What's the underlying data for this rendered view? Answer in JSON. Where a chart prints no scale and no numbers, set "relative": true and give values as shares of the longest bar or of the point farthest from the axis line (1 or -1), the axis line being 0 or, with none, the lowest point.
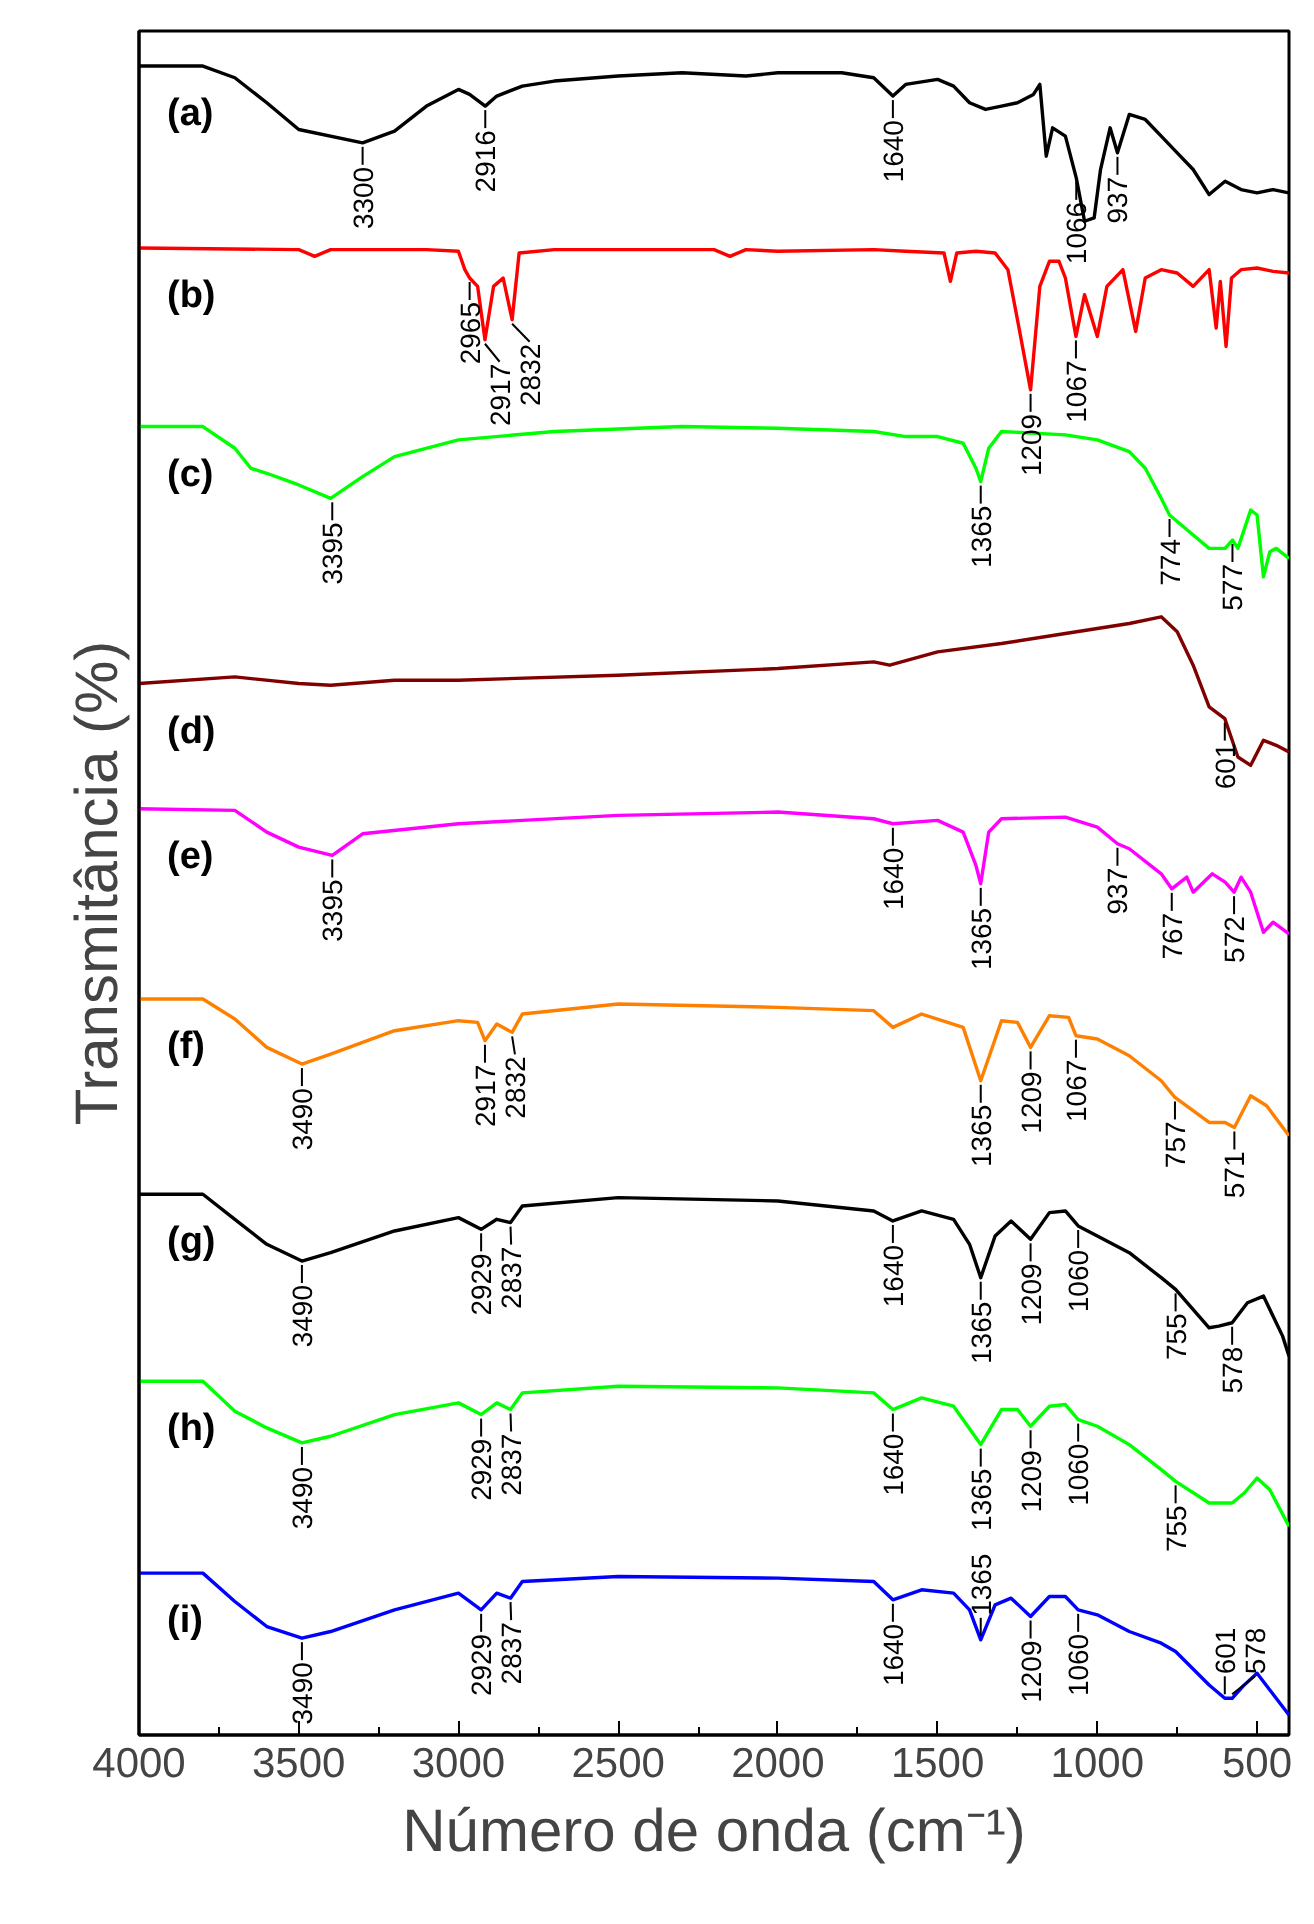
{
  "chart_data": {
    "type": "line",
    "relative": true,
    "xlabel": "Número de onda (cm⁻¹)",
    "ylabel": "Transmitância (%)",
    "xlim": [
      4000,
      400
    ],
    "xticks": [
      4000,
      3500,
      3000,
      2500,
      2000,
      1500,
      1000,
      500
    ],
    "grid": false,
    "series": [
      {
        "name": "(a)",
        "color": "#000000",
        "x": [
          4000,
          3800,
          3700,
          3600,
          3500,
          3300,
          3200,
          3100,
          3000,
          2965,
          2916,
          2880,
          2800,
          2700,
          2500,
          2300,
          2100,
          2000,
          1800,
          1700,
          1640,
          1600,
          1500,
          1450,
          1400,
          1350,
          1300,
          1250,
          1200,
          1180,
          1160,
          1140,
          1100,
          1066,
          1040,
          1010,
          990,
          960,
          937,
          900,
          850,
          800,
          750,
          700,
          650,
          600,
          550,
          500,
          450,
          400
        ],
        "values": [
          1.0,
          1.0,
          0.993,
          0.978,
          0.962,
          0.954,
          0.961,
          0.976,
          0.986,
          0.983,
          0.976,
          0.982,
          0.988,
          0.991,
          0.994,
          0.996,
          0.994,
          0.996,
          0.996,
          0.993,
          0.982,
          0.989,
          0.992,
          0.988,
          0.978,
          0.974,
          0.976,
          0.978,
          0.983,
          0.989,
          0.946,
          0.963,
          0.958,
          0.933,
          0.907,
          0.909,
          0.938,
          0.963,
          0.948,
          0.971,
          0.968,
          0.958,
          0.948,
          0.938,
          0.923,
          0.931,
          0.926,
          0.924,
          0.926,
          0.924
        ]
      },
      {
        "name": "(b)",
        "color": "#ff0000",
        "x": [
          4000,
          3500,
          3450,
          3400,
          3100,
          3000,
          2980,
          2965,
          2940,
          2917,
          2890,
          2860,
          2832,
          2810,
          2700,
          2500,
          2200,
          2150,
          2100,
          2000,
          1700,
          1600,
          1480,
          1460,
          1440,
          1380,
          1320,
          1280,
          1250,
          1209,
          1180,
          1150,
          1120,
          1100,
          1067,
          1040,
          1000,
          970,
          920,
          880,
          850,
          800,
          750,
          700,
          650,
          628,
          615,
          597,
          580,
          550,
          500,
          450,
          400
        ],
        "values": [
          0.891,
          0.89,
          0.886,
          0.89,
          0.89,
          0.889,
          0.878,
          0.873,
          0.868,
          0.836,
          0.868,
          0.873,
          0.848,
          0.888,
          0.89,
          0.89,
          0.89,
          0.886,
          0.89,
          0.889,
          0.89,
          0.889,
          0.888,
          0.871,
          0.888,
          0.889,
          0.888,
          0.878,
          0.848,
          0.806,
          0.868,
          0.883,
          0.883,
          0.873,
          0.838,
          0.863,
          0.838,
          0.868,
          0.878,
          0.841,
          0.873,
          0.878,
          0.876,
          0.868,
          0.878,
          0.843,
          0.871,
          0.832,
          0.873,
          0.878,
          0.879,
          0.877,
          0.876
        ]
      },
      {
        "name": "(c)",
        "color": "#00ff00",
        "x": [
          4000,
          3800,
          3700,
          3650,
          3600,
          3500,
          3400,
          3300,
          3200,
          3000,
          2700,
          2300,
          2000,
          1700,
          1600,
          1500,
          1420,
          1380,
          1365,
          1340,
          1300,
          1100,
          1000,
          900,
          850,
          800,
          774,
          700,
          650,
          600,
          577,
          560,
          520,
          500,
          480,
          460,
          440,
          400
        ],
        "values": [
          0.784,
          0.784,
          0.771,
          0.759,
          0.756,
          0.749,
          0.741,
          0.754,
          0.766,
          0.776,
          0.781,
          0.784,
          0.783,
          0.781,
          0.778,
          0.778,
          0.774,
          0.759,
          0.751,
          0.771,
          0.781,
          0.779,
          0.776,
          0.769,
          0.759,
          0.741,
          0.731,
          0.719,
          0.711,
          0.711,
          0.716,
          0.711,
          0.734,
          0.731,
          0.694,
          0.709,
          0.711,
          0.705
        ]
      },
      {
        "name": "(d)",
        "color": "#800000",
        "x": [
          4000,
          3700,
          3500,
          3400,
          3200,
          3000,
          2500,
          2000,
          1700,
          1650,
          1500,
          1300,
          1100,
          900,
          800,
          750,
          700,
          650,
          601,
          560,
          520,
          480,
          440,
          400
        ],
        "values": [
          0.63,
          0.634,
          0.63,
          0.629,
          0.632,
          0.632,
          0.635,
          0.639,
          0.643,
          0.641,
          0.649,
          0.654,
          0.66,
          0.666,
          0.67,
          0.661,
          0.641,
          0.616,
          0.609,
          0.586,
          0.581,
          0.596,
          0.593,
          0.589
        ]
      },
      {
        "name": "(e)",
        "color": "#ff00ff",
        "x": [
          4000,
          3700,
          3600,
          3500,
          3395,
          3300,
          3000,
          2500,
          2000,
          1700,
          1640,
          1500,
          1420,
          1380,
          1365,
          1340,
          1300,
          1100,
          1000,
          937,
          900,
          800,
          767,
          720,
          700,
          640,
          600,
          572,
          550,
          520,
          480,
          450,
          400
        ],
        "values": [
          0.555,
          0.554,
          0.541,
          0.532,
          0.527,
          0.54,
          0.546,
          0.551,
          0.553,
          0.549,
          0.546,
          0.548,
          0.541,
          0.521,
          0.51,
          0.541,
          0.549,
          0.55,
          0.544,
          0.534,
          0.531,
          0.516,
          0.507,
          0.514,
          0.505,
          0.516,
          0.511,
          0.505,
          0.514,
          0.505,
          0.481,
          0.487,
          0.48
        ]
      },
      {
        "name": "(f)",
        "color": "#ff8000",
        "x": [
          4000,
          3800,
          3700,
          3600,
          3490,
          3400,
          3200,
          3000,
          2940,
          2917,
          2880,
          2832,
          2800,
          2500,
          2000,
          1700,
          1640,
          1550,
          1420,
          1365,
          1300,
          1250,
          1209,
          1150,
          1090,
          1067,
          1000,
          900,
          800,
          757,
          650,
          600,
          571,
          520,
          470,
          400
        ],
        "values": [
          0.441,
          0.441,
          0.429,
          0.412,
          0.402,
          0.408,
          0.422,
          0.428,
          0.427,
          0.416,
          0.426,
          0.421,
          0.432,
          0.438,
          0.436,
          0.434,
          0.424,
          0.432,
          0.424,
          0.392,
          0.428,
          0.427,
          0.412,
          0.431,
          0.43,
          0.419,
          0.417,
          0.407,
          0.392,
          0.382,
          0.367,
          0.367,
          0.364,
          0.383,
          0.377,
          0.359
        ]
      },
      {
        "name": "(g)",
        "color": "#000000",
        "x": [
          4000,
          3800,
          3700,
          3600,
          3490,
          3400,
          3200,
          3000,
          2929,
          2880,
          2837,
          2800,
          2500,
          2000,
          1700,
          1640,
          1550,
          1450,
          1400,
          1365,
          1320,
          1270,
          1209,
          1150,
          1100,
          1060,
          1000,
          900,
          800,
          755,
          650,
          620,
          578,
          530,
          480,
          420,
          400
        ],
        "values": [
          0.324,
          0.324,
          0.309,
          0.294,
          0.284,
          0.289,
          0.302,
          0.31,
          0.303,
          0.309,
          0.307,
          0.317,
          0.322,
          0.32,
          0.314,
          0.308,
          0.314,
          0.309,
          0.294,
          0.274,
          0.299,
          0.308,
          0.297,
          0.313,
          0.314,
          0.305,
          0.299,
          0.289,
          0.274,
          0.267,
          0.244,
          0.245,
          0.247,
          0.259,
          0.263,
          0.239,
          0.227
        ]
      },
      {
        "name": "(h)",
        "color": "#00ff00",
        "x": [
          4000,
          3800,
          3700,
          3600,
          3490,
          3400,
          3200,
          3000,
          2929,
          2880,
          2837,
          2800,
          2500,
          2000,
          1700,
          1640,
          1550,
          1450,
          1365,
          1300,
          1250,
          1209,
          1150,
          1100,
          1060,
          1000,
          900,
          800,
          755,
          650,
          601,
          578,
          540,
          500,
          460,
          400
        ],
        "values": [
          0.212,
          0.212,
          0.194,
          0.184,
          0.175,
          0.179,
          0.192,
          0.199,
          0.192,
          0.199,
          0.195,
          0.205,
          0.209,
          0.208,
          0.205,
          0.195,
          0.202,
          0.197,
          0.174,
          0.195,
          0.195,
          0.185,
          0.197,
          0.198,
          0.189,
          0.185,
          0.174,
          0.159,
          0.152,
          0.139,
          0.139,
          0.139,
          0.145,
          0.154,
          0.147,
          0.125
        ]
      },
      {
        "name": "(i)",
        "color": "#0000ff",
        "x": [
          4000,
          3800,
          3700,
          3600,
          3490,
          3400,
          3200,
          3000,
          2929,
          2880,
          2837,
          2800,
          2500,
          2000,
          1700,
          1640,
          1550,
          1450,
          1400,
          1365,
          1320,
          1270,
          1209,
          1150,
          1100,
          1060,
          1000,
          900,
          800,
          755,
          650,
          601,
          578,
          540,
          500,
          460,
          400
        ],
        "values": [
          0.097,
          0.097,
          0.08,
          0.065,
          0.058,
          0.062,
          0.075,
          0.085,
          0.075,
          0.085,
          0.082,
          0.092,
          0.095,
          0.094,
          0.092,
          0.081,
          0.087,
          0.085,
          0.075,
          0.057,
          0.078,
          0.082,
          0.071,
          0.083,
          0.083,
          0.075,
          0.072,
          0.062,
          0.055,
          0.05,
          0.03,
          0.022,
          0.022,
          0.03,
          0.037,
          0.027,
          0.012
        ]
      }
    ],
    "annotations": [
      {
        "text": "3300",
        "x": 3300,
        "y": 0.954
      },
      {
        "text": "2916",
        "x": 2916,
        "y": 0.976
      },
      {
        "text": "1640",
        "x": 1640,
        "y": 0.982
      },
      {
        "text": "1066",
        "x": 1066,
        "y": 0.933
      },
      {
        "text": "937",
        "x": 937,
        "y": 0.948
      },
      {
        "text": "2965",
        "x": 2965,
        "y": 0.873
      },
      {
        "text": "2917",
        "x": 2917,
        "y": 0.836
      },
      {
        "text": "2832",
        "x": 2832,
        "y": 0.848
      },
      {
        "text": "1209",
        "x": 1209,
        "y": 0.806
      },
      {
        "text": "1067",
        "x": 1067,
        "y": 0.838
      },
      {
        "text": "3395",
        "x": 3395,
        "y": 0.741
      },
      {
        "text": "1365",
        "x": 1365,
        "y": 0.751
      },
      {
        "text": "774",
        "x": 774,
        "y": 0.731
      },
      {
        "text": "577",
        "x": 577,
        "y": 0.716
      },
      {
        "text": "601",
        "x": 601,
        "y": 0.609
      },
      {
        "text": "3395",
        "x": 3395,
        "y": 0.527
      },
      {
        "text": "1640",
        "x": 1640,
        "y": 0.546
      },
      {
        "text": "1365",
        "x": 1365,
        "y": 0.51
      },
      {
        "text": "937",
        "x": 937,
        "y": 0.534
      },
      {
        "text": "767",
        "x": 767,
        "y": 0.507
      },
      {
        "text": "572",
        "x": 572,
        "y": 0.505
      },
      {
        "text": "3490",
        "x": 3490,
        "y": 0.402
      },
      {
        "text": "2917",
        "x": 2917,
        "y": 0.416
      },
      {
        "text": "2832",
        "x": 2832,
        "y": 0.421
      },
      {
        "text": "1365",
        "x": 1365,
        "y": 0.392
      },
      {
        "text": "1209",
        "x": 1209,
        "y": 0.412
      },
      {
        "text": "1067",
        "x": 1067,
        "y": 0.419
      },
      {
        "text": "757",
        "x": 757,
        "y": 0.382
      },
      {
        "text": "571",
        "x": 571,
        "y": 0.364
      },
      {
        "text": "3490",
        "x": 3490,
        "y": 0.284
      },
      {
        "text": "2929",
        "x": 2929,
        "y": 0.303
      },
      {
        "text": "2837",
        "x": 2837,
        "y": 0.307
      },
      {
        "text": "1640",
        "x": 1640,
        "y": 0.308
      },
      {
        "text": "1365",
        "x": 1365,
        "y": 0.274
      },
      {
        "text": "1209",
        "x": 1209,
        "y": 0.297
      },
      {
        "text": "1060",
        "x": 1060,
        "y": 0.305
      },
      {
        "text": "755",
        "x": 755,
        "y": 0.267
      },
      {
        "text": "578",
        "x": 578,
        "y": 0.247
      },
      {
        "text": "3490",
        "x": 3490,
        "y": 0.175
      },
      {
        "text": "2929",
        "x": 2929,
        "y": 0.192
      },
      {
        "text": "2837",
        "x": 2837,
        "y": 0.195
      },
      {
        "text": "1640",
        "x": 1640,
        "y": 0.195
      },
      {
        "text": "1365",
        "x": 1365,
        "y": 0.174
      },
      {
        "text": "1209",
        "x": 1209,
        "y": 0.185
      },
      {
        "text": "1060",
        "x": 1060,
        "y": 0.189
      },
      {
        "text": "755",
        "x": 755,
        "y": 0.152
      },
      {
        "text": "3490",
        "x": 3490,
        "y": 0.058
      },
      {
        "text": "2929",
        "x": 2929,
        "y": 0.075
      },
      {
        "text": "2837",
        "x": 2837,
        "y": 0.082
      },
      {
        "text": "1640",
        "x": 1640,
        "y": 0.081
      },
      {
        "text": "1365",
        "x": 1365,
        "y": 0.057
      },
      {
        "text": "1209",
        "x": 1209,
        "y": 0.071
      },
      {
        "text": "1060",
        "x": 1060,
        "y": 0.075
      },
      {
        "text": "601",
        "x": 601,
        "y": 0.022
      },
      {
        "text": "578",
        "x": 578,
        "y": 0.022
      }
    ]
  }
}
